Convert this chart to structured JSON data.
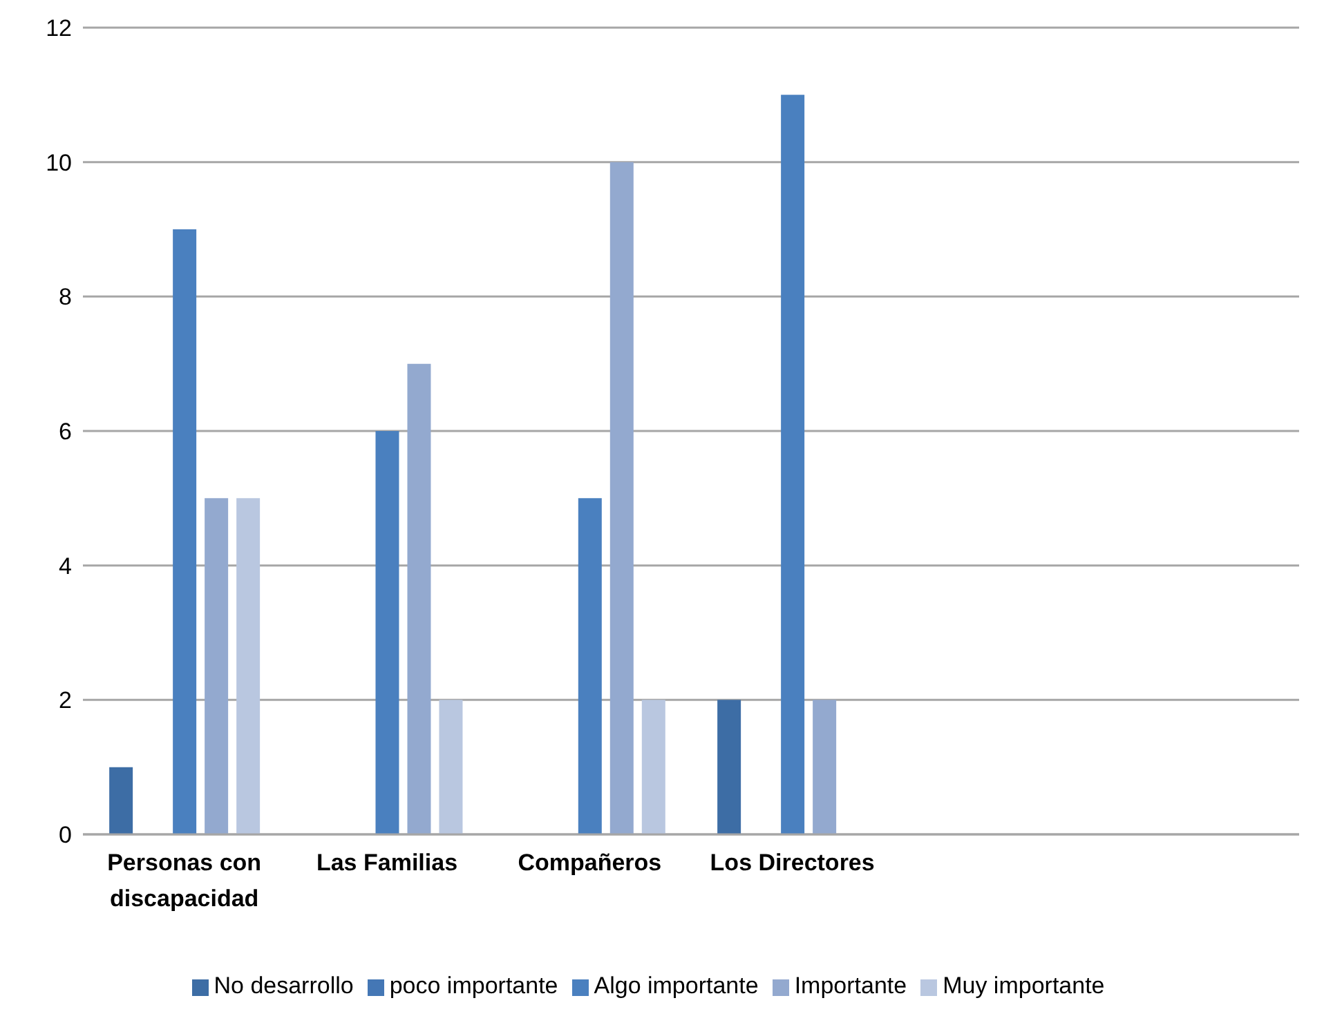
{
  "chart_data": {
    "type": "bar",
    "categories": [
      "Personas con discapacidad",
      "Las Familias",
      "Compañeros",
      "Los Directores",
      null,
      null
    ],
    "series": [
      {
        "name": "No desarrollo",
        "color": "#3d6da5",
        "values": [
          1,
          null,
          null,
          2,
          null,
          null
        ]
      },
      {
        "name": "poco importante",
        "color": "#4477b5",
        "values": [
          null,
          null,
          null,
          null,
          null,
          null
        ]
      },
      {
        "name": "Algo importante",
        "color": "#4a80bf",
        "values": [
          9,
          6,
          5,
          11,
          null,
          null
        ]
      },
      {
        "name": "Importante",
        "color": "#93a9cf",
        "values": [
          5,
          7,
          10,
          2,
          null,
          null
        ]
      },
      {
        "name": "Muy importante",
        "color": "#b9c7e0",
        "values": [
          5,
          2,
          2,
          null,
          null,
          null
        ]
      }
    ],
    "ylim": [
      0,
      12
    ],
    "yticks": [
      0,
      2,
      4,
      6,
      8,
      10,
      12
    ],
    "grid": "y",
    "legend": "bottom"
  }
}
